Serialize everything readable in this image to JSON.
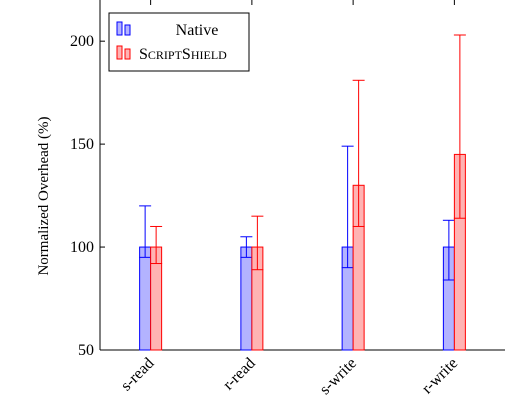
{
  "chart_data": {
    "type": "bar",
    "categories": [
      "s-read",
      "r-read",
      "s-write",
      "r-write"
    ],
    "series": [
      {
        "name": "Native",
        "values": [
          100,
          100,
          100,
          100
        ],
        "err_low": [
          95,
          95,
          90,
          84
        ],
        "err_high": [
          120,
          105,
          149,
          113
        ],
        "color": "#0000ff",
        "fill": "#b3b3ff"
      },
      {
        "name": "ScriptShield",
        "values": [
          100,
          100,
          130,
          145
        ],
        "err_low": [
          92,
          89,
          110,
          114
        ],
        "err_high": [
          110,
          115,
          181,
          203
        ],
        "color": "#ff0000",
        "fill": "#ffb3b3"
      }
    ],
    "ylabel": "Normalized Overhead (%)",
    "xlabel": "",
    "ylim": [
      50,
      220
    ],
    "yticks": [
      50,
      100,
      150,
      200
    ],
    "legend_position": "top-left",
    "grid": false
  }
}
